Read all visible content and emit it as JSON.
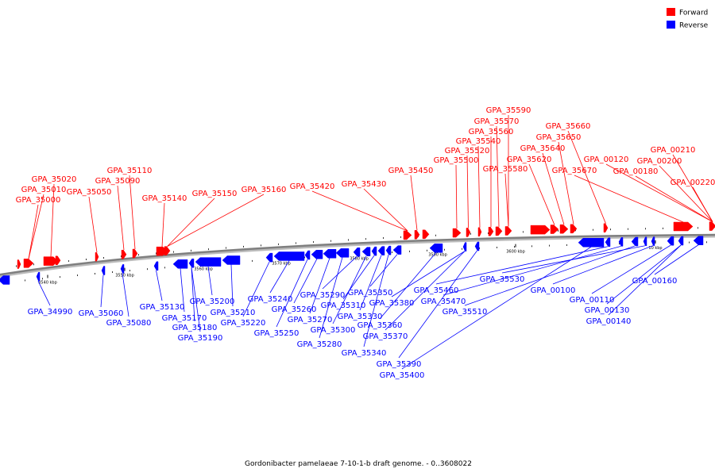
{
  "legend": {
    "forward_label": "Forward",
    "reverse_label": "Reverse",
    "forward_color": "#ff0000",
    "reverse_color": "#0000ff"
  },
  "caption": "Gordonibacter pamelaeae 7-10-1-b draft genome. - 0..3608022",
  "colors": {
    "forward": "#ff0000",
    "reverse": "#0000ff",
    "backbone": "#7f7f7f"
  },
  "ticks": [
    "3540 kbp",
    "3550 kbp",
    "3560 kbp",
    "3570 kbp",
    "3580 kbp",
    "3590 kbp",
    "3600 kbp",
    "10 kbp"
  ],
  "forward_labels": [
    "GPA_35000",
    "GPA_35010",
    "GPA_35020",
    "GPA_35050",
    "GPA_35090",
    "GPA_35110",
    "GPA_35140",
    "GPA_35150",
    "GPA_35160",
    "GPA_35420",
    "GPA_35430",
    "GPA_35450",
    "GPA_35500",
    "GPA_35520",
    "GPA_35540",
    "GPA_35560",
    "GPA_35570",
    "GPA_35580",
    "GPA_35590",
    "GPA_35620",
    "GPA_35640",
    "GPA_35650",
    "GPA_35660",
    "GPA_35670",
    "GPA_00120",
    "GPA_00180",
    "GPA_00200",
    "GPA_00210",
    "GPA_00220"
  ],
  "reverse_labels": [
    "GPA_34990",
    "GPA_35060",
    "GPA_35080",
    "GPA_35130",
    "GPA_35170",
    "GPA_35180",
    "GPA_35190",
    "GPA_35200",
    "GPA_35210",
    "GPA_35220",
    "GPA_35240",
    "GPA_35250",
    "GPA_35260",
    "GPA_35270",
    "GPA_35280",
    "GPA_35290",
    "GPA_35300",
    "GPA_35310",
    "GPA_35330",
    "GPA_35340",
    "GPA_35350",
    "GPA_35360",
    "GPA_35370",
    "GPA_35380",
    "GPA_35390",
    "GPA_35400",
    "GPA_35460",
    "GPA_35470",
    "GPA_35510",
    "GPA_35530",
    "GPA_00100",
    "GPA_00110",
    "GPA_00130",
    "GPA_00140",
    "GPA_00160"
  ]
}
